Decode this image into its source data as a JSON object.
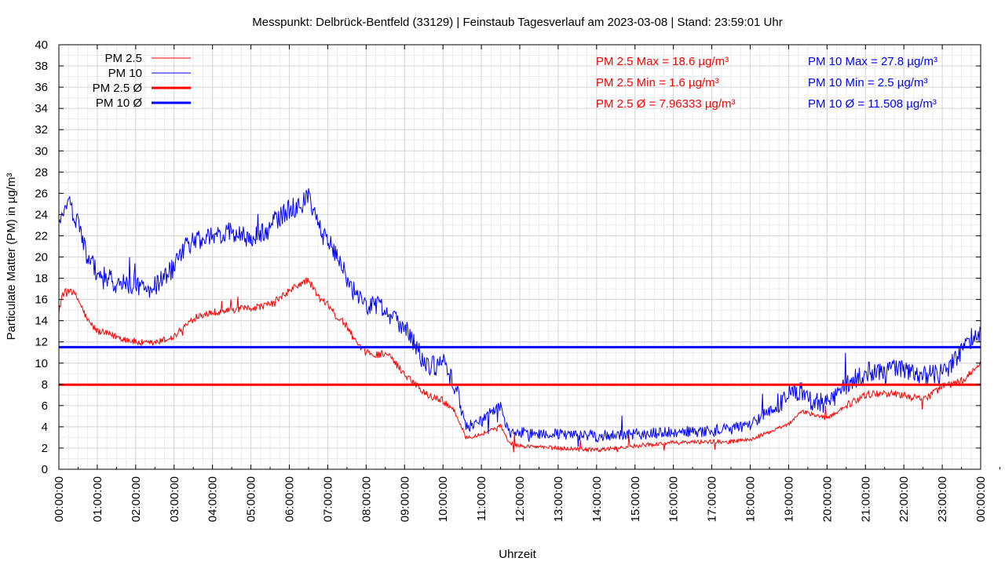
{
  "chart_data": {
    "type": "line",
    "title": "Messpunkt: Delbrück-Bentfeld (33129) | Feinstaub Tagesverlauf am 2023-03-08 | Stand: 23:59:01 Uhr",
    "xlabel": "Uhrzeit",
    "ylabel": "Particulate Matter (PM) in µg/m³",
    "ylim": [
      0,
      40
    ],
    "yticks": [
      0,
      2,
      4,
      6,
      8,
      10,
      12,
      14,
      16,
      18,
      20,
      22,
      24,
      26,
      28,
      30,
      32,
      34,
      36,
      38,
      40
    ],
    "xlim": [
      0,
      24
    ],
    "xtick_labels": [
      "00:00:00",
      "01:00:00",
      "02:00:00",
      "03:00:00",
      "04:00:00",
      "05:00:00",
      "06:00:00",
      "07:00:00",
      "08:00:00",
      "09:00:00",
      "10:00:00",
      "11:00:00",
      "12:00:00",
      "13:00:00",
      "14:00:00",
      "15:00:00",
      "16:00:00",
      "17:00:00",
      "18:00:00",
      "19:00:00",
      "20:00:00",
      "21:00:00",
      "22:00:00",
      "23:00:00",
      "00:00:00"
    ],
    "grid": true,
    "legend_position": "top-left",
    "series": [
      {
        "name": "PM 2.5",
        "color": "#ff0000",
        "x": [
          0.0,
          0.1,
          0.3,
          0.5,
          0.75,
          1.0,
          1.5,
          2.0,
          2.3,
          2.6,
          3.0,
          3.3,
          3.6,
          4.0,
          4.5,
          5.0,
          5.5,
          6.0,
          6.3,
          6.5,
          6.8,
          7.0,
          7.2,
          7.5,
          7.8,
          8.0,
          8.3,
          8.5,
          9.0,
          9.3,
          9.6,
          10.0,
          10.3,
          10.6,
          11.0,
          11.3,
          11.5,
          11.7,
          12.0,
          13.0,
          14.0,
          15.0,
          16.0,
          17.0,
          17.5,
          18.0,
          18.5,
          19.0,
          19.3,
          19.6,
          20.0,
          20.5,
          21.0,
          21.5,
          22.0,
          22.5,
          23.0,
          23.5,
          23.8,
          24.0
        ],
        "values": [
          15,
          16.5,
          17,
          16,
          14,
          13,
          12.5,
          12,
          11.8,
          12,
          12.5,
          13.5,
          14.5,
          14.8,
          15,
          15.2,
          15.5,
          16.8,
          17.5,
          17.8,
          16,
          15.5,
          14.5,
          13.5,
          11.5,
          11,
          10.8,
          11,
          9,
          8,
          7,
          6.5,
          5.5,
          3,
          3.3,
          3.8,
          4.2,
          2.5,
          2.2,
          2,
          1.8,
          2.2,
          2.5,
          2.6,
          2.6,
          2.8,
          3.5,
          4.2,
          5.5,
          5.2,
          4.8,
          6,
          7,
          7.2,
          7,
          6.5,
          7.8,
          8.3,
          9.2,
          10
        ]
      },
      {
        "name": "PM 10",
        "color": "#0000ff",
        "x": [
          0.0,
          0.1,
          0.25,
          0.5,
          0.75,
          1.0,
          1.5,
          2.0,
          2.3,
          2.6,
          3.0,
          3.3,
          3.6,
          4.0,
          4.5,
          5.0,
          5.5,
          6.0,
          6.3,
          6.5,
          6.8,
          7.0,
          7.2,
          7.5,
          7.8,
          8.0,
          8.3,
          8.5,
          9.0,
          9.3,
          9.6,
          10.0,
          10.3,
          10.6,
          11.0,
          11.3,
          11.5,
          11.7,
          12.0,
          13.0,
          14.0,
          15.0,
          16.0,
          17.0,
          17.5,
          18.0,
          18.5,
          19.0,
          19.3,
          19.6,
          20.0,
          20.5,
          21.0,
          21.5,
          22.0,
          22.5,
          23.0,
          23.5,
          23.8,
          24.0
        ],
        "values": [
          23,
          24.5,
          25,
          23,
          20,
          18.5,
          17.5,
          17.5,
          17,
          17.5,
          19,
          21,
          21.5,
          22,
          22.5,
          21.5,
          23,
          24.5,
          25,
          25.5,
          22.5,
          21.5,
          20.5,
          18,
          16,
          15.5,
          15.5,
          15,
          13.5,
          11.5,
          9.5,
          10,
          8,
          4,
          4.5,
          5.5,
          6,
          3.5,
          3.5,
          3.3,
          3.1,
          3.3,
          3.5,
          3.6,
          3.8,
          4.2,
          5.5,
          7,
          7.5,
          6.5,
          6.2,
          8,
          9.2,
          9.3,
          9.6,
          8.8,
          9,
          11,
          12.5,
          13
        ]
      },
      {
        "name": "PM 2.5 Ø",
        "color": "#ff0000",
        "constant": 7.96333
      },
      {
        "name": "PM 10 Ø",
        "color": "#0000ff",
        "constant": 11.508
      }
    ],
    "annotations": {
      "pm25": [
        "PM 2.5 Max = 18.6 µg/m³",
        "PM 2.5 Min = 1.6 µg/m³",
        "PM 2.5 Ø = 7.96333 µg/m³"
      ],
      "pm10": [
        "PM 10 Max = 27.8 µg/m³",
        "PM 10 Min = 2.5 µg/m³",
        "PM 10 Ø = 11.508 µg/m³"
      ]
    }
  }
}
